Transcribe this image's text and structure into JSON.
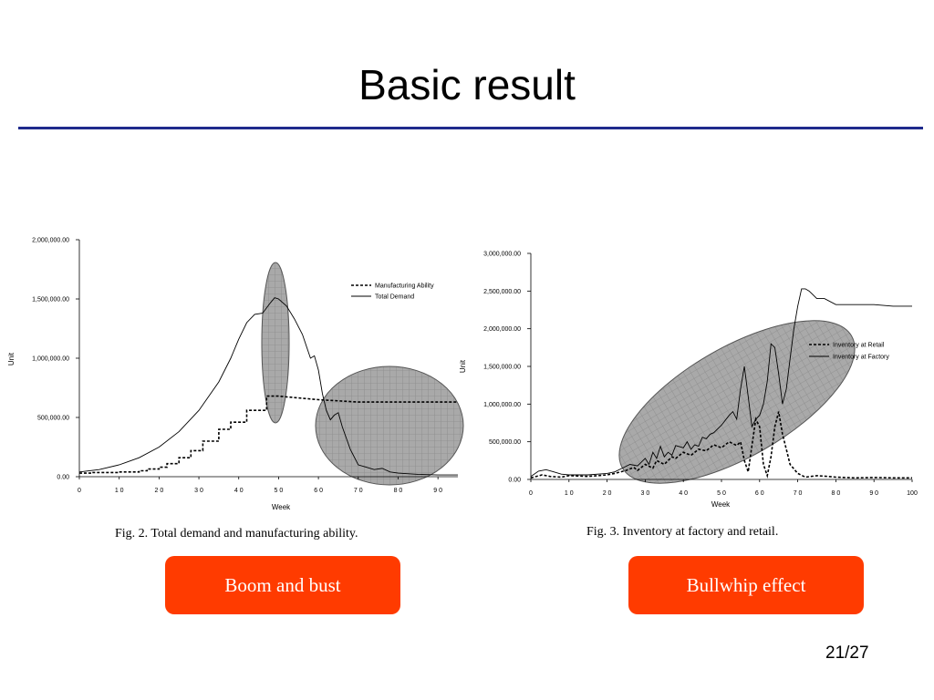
{
  "slide": {
    "title": "Basic result",
    "page_number": "21/27",
    "buttons": [
      "Boom and bust",
      "Bullwhip effect"
    ],
    "accent_rule_color": "#1f2a8c",
    "button_color": "#ff3b00"
  },
  "chart_data": [
    {
      "type": "line",
      "caption": "Fig. 2. Total demand and manufacturing ability.",
      "xlabel": "Week",
      "ylabel": "Unit",
      "xlim": [
        0,
        95
      ],
      "ylim": [
        0,
        2000000
      ],
      "xticks": [
        0,
        10,
        20,
        30,
        40,
        50,
        60,
        70,
        80,
        90
      ],
      "xtick_labels": [
        "0",
        "1 0",
        "2 0",
        "3 0",
        "4 0",
        "5 0",
        "6 0",
        "7 0",
        "8 0",
        "9 0"
      ],
      "yticks": [
        0,
        500000,
        1000000,
        1500000,
        2000000
      ],
      "ytick_labels": [
        "0.00",
        "500,000.00",
        "1,000,000.00",
        "1,500,000.00",
        "2,000,000.00"
      ],
      "legend_position": "top-right",
      "series": [
        {
          "name": "Manufacturing Ability",
          "style": "dashed",
          "x": [
            0,
            3,
            3,
            10,
            10,
            15,
            15,
            17,
            17,
            20,
            20,
            22,
            22,
            25,
            25,
            28,
            28,
            31,
            31,
            35,
            35,
            38,
            38,
            42,
            42,
            44,
            44,
            47,
            47,
            50,
            50,
            55,
            60,
            70,
            80,
            95
          ],
          "y": [
            30000,
            30000,
            35000,
            35000,
            40000,
            40000,
            50000,
            50000,
            65000,
            65000,
            80000,
            80000,
            110000,
            110000,
            160000,
            160000,
            220000,
            220000,
            300000,
            300000,
            400000,
            400000,
            460000,
            460000,
            560000,
            560000,
            560000,
            560000,
            680000,
            680000,
            680000,
            665000,
            650000,
            630000,
            630000,
            630000
          ]
        },
        {
          "name": "Total Demand",
          "style": "solid",
          "x": [
            0,
            5,
            10,
            15,
            20,
            25,
            30,
            35,
            38,
            40,
            42,
            44,
            46,
            48,
            49,
            50,
            52,
            54,
            56,
            58,
            59,
            60,
            61,
            62,
            63,
            64,
            65,
            66,
            68,
            70,
            72,
            74,
            76,
            78,
            80,
            85,
            90,
            95
          ],
          "y": [
            40000,
            60000,
            100000,
            160000,
            250000,
            380000,
            560000,
            800000,
            1000000,
            1160000,
            1300000,
            1370000,
            1380000,
            1470000,
            1510000,
            1500000,
            1440000,
            1330000,
            1200000,
            1000000,
            1020000,
            900000,
            700000,
            560000,
            480000,
            520000,
            540000,
            420000,
            230000,
            100000,
            80000,
            60000,
            70000,
            40000,
            30000,
            20000,
            15000,
            15000
          ]
        }
      ]
    },
    {
      "type": "line",
      "caption": "Fig. 3. Inventory at factory and retail.",
      "xlabel": "Week",
      "ylabel": "Unit",
      "xlim": [
        0,
        100
      ],
      "ylim": [
        0,
        3000000
      ],
      "xticks": [
        0,
        10,
        20,
        30,
        40,
        50,
        60,
        70,
        80,
        90,
        100
      ],
      "xtick_labels": [
        "0",
        "1 0",
        "2 0",
        "3 0",
        "4 0",
        "5 0",
        "6 0",
        "7 0",
        "8 0",
        "9 0",
        "100"
      ],
      "yticks": [
        0,
        500000,
        1000000,
        1500000,
        2000000,
        2500000,
        3000000
      ],
      "ytick_labels": [
        "0.00",
        "500,000.00",
        "1,000,000.00",
        "1,500,000.00",
        "2,000,000.00",
        "2,500,000.00",
        "3,000,000.00"
      ],
      "legend_position": "top-right",
      "series": [
        {
          "name": "Inventory at Retail",
          "style": "dashed",
          "x": [
            0,
            3,
            5,
            8,
            10,
            15,
            20,
            22,
            25,
            27,
            28,
            30,
            32,
            33,
            35,
            37,
            38,
            40,
            42,
            44,
            46,
            48,
            50,
            52,
            54,
            55,
            56,
            57,
            58,
            59,
            60,
            61,
            62,
            63,
            64,
            65,
            66,
            67,
            68,
            70,
            72,
            75,
            78,
            80,
            85,
            90,
            95,
            100
          ],
          "y": [
            20000,
            60000,
            40000,
            30000,
            50000,
            40000,
            60000,
            80000,
            120000,
            160000,
            120000,
            200000,
            150000,
            250000,
            200000,
            300000,
            280000,
            360000,
            320000,
            400000,
            380000,
            460000,
            420000,
            500000,
            450000,
            500000,
            250000,
            100000,
            450000,
            800000,
            700000,
            200000,
            50000,
            300000,
            700000,
            900000,
            600000,
            400000,
            200000,
            80000,
            30000,
            50000,
            40000,
            30000,
            20000,
            25000,
            20000,
            20000
          ]
        },
        {
          "name": "Inventory at Factory",
          "style": "solid",
          "x": [
            0,
            2,
            4,
            6,
            8,
            10,
            15,
            20,
            22,
            24,
            26,
            28,
            30,
            31,
            32,
            33,
            34,
            35,
            36,
            37,
            38,
            40,
            41,
            42,
            43,
            44,
            45,
            46,
            47,
            48,
            50,
            52,
            53,
            54,
            55,
            56,
            57,
            58,
            59,
            60,
            61,
            62,
            63,
            64,
            65,
            66,
            67,
            68,
            69,
            70,
            71,
            72,
            73,
            75,
            77,
            80,
            85,
            90,
            95,
            100
          ],
          "y": [
            40000,
            110000,
            130000,
            100000,
            70000,
            60000,
            60000,
            80000,
            100000,
            150000,
            200000,
            180000,
            280000,
            200000,
            360000,
            280000,
            440000,
            300000,
            360000,
            320000,
            450000,
            420000,
            500000,
            400000,
            460000,
            440000,
            560000,
            540000,
            600000,
            620000,
            720000,
            850000,
            900000,
            800000,
            1200000,
            1500000,
            1100000,
            700000,
            800000,
            850000,
            1000000,
            1300000,
            1800000,
            1750000,
            1400000,
            1000000,
            1200000,
            1600000,
            2000000,
            2300000,
            2530000,
            2530000,
            2500000,
            2400000,
            2400000,
            2320000,
            2320000,
            2320000,
            2300000,
            2300000
          ]
        }
      ]
    }
  ]
}
